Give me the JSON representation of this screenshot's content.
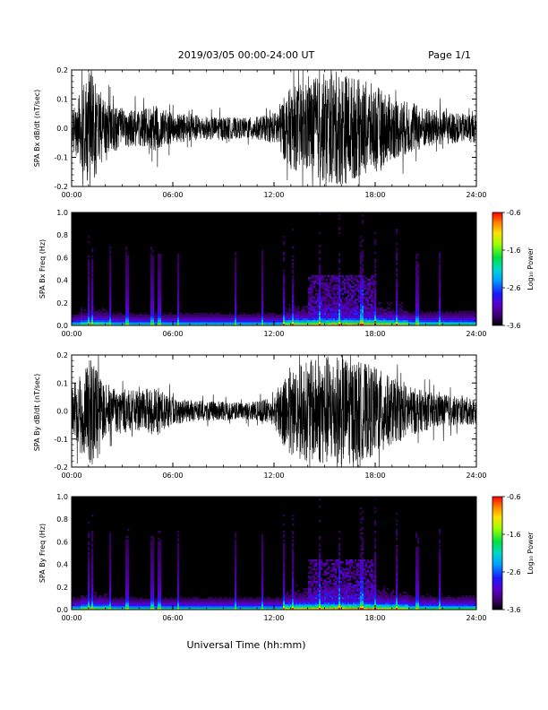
{
  "header": {
    "title": "2019/03/05  00:00-24:00 UT",
    "page": "Page 1/1"
  },
  "footer": {
    "xlabel": "Universal Time (hh:mm)"
  },
  "chart_data": [
    {
      "type": "line",
      "ylabel": "SPA Bx dB/dt (nT/sec)",
      "xlim": [
        0,
        24
      ],
      "ylim": [
        -0.2,
        0.2
      ],
      "x_ticks": [
        "00:00",
        "06:00",
        "12:00",
        "18:00",
        "24:00"
      ],
      "y_ticks": [
        "-0.2",
        "-0.1",
        "0.0",
        "0.1",
        "0.2"
      ],
      "envelope_hours": [
        0,
        0.5,
        1,
        1.5,
        2,
        3,
        4,
        5,
        6,
        7,
        8,
        9,
        10,
        11,
        12,
        12.5,
        13,
        14,
        15,
        16,
        17,
        18,
        19,
        20,
        21,
        22,
        23,
        24
      ],
      "envelope_amplitude": [
        0.07,
        0.12,
        0.2,
        0.16,
        0.09,
        0.07,
        0.06,
        0.08,
        0.05,
        0.05,
        0.04,
        0.04,
        0.035,
        0.04,
        0.05,
        0.1,
        0.14,
        0.16,
        0.19,
        0.2,
        0.17,
        0.15,
        0.11,
        0.09,
        0.07,
        0.06,
        0.05,
        0.05
      ]
    },
    {
      "type": "heatmap",
      "ylabel": "SPA Bx Freq (Hz)",
      "xlim": [
        0,
        24
      ],
      "ylim": [
        0,
        1.0
      ],
      "x_ticks": [
        "00:00",
        "06:00",
        "12:00",
        "18:00",
        "24:00"
      ],
      "y_ticks": [
        "0.0",
        "0.2",
        "0.4",
        "0.6",
        "0.8",
        "1.0"
      ],
      "colorbar": {
        "label": "Log₁₀ Power",
        "range": [
          -3.6,
          -0.6
        ],
        "ticks": [
          "-0.6",
          "-1.6",
          "-2.6",
          "-3.6"
        ]
      }
    },
    {
      "type": "line",
      "ylabel": "SPA By dB/dt (nT/sec)",
      "xlim": [
        0,
        24
      ],
      "ylim": [
        -0.2,
        0.2
      ],
      "x_ticks": [
        "00:00",
        "06:00",
        "12:00",
        "18:00",
        "24:00"
      ],
      "y_ticks": [
        "-0.2",
        "-0.1",
        "0.0",
        "0.1",
        "0.2"
      ],
      "envelope_hours": [
        0,
        0.5,
        1,
        1.5,
        2,
        3,
        4,
        5,
        6,
        7,
        8,
        9,
        10,
        11,
        12,
        12.5,
        13,
        14,
        15,
        16,
        17,
        18,
        19,
        20,
        21,
        22,
        23,
        24
      ],
      "envelope_amplitude": [
        0.08,
        0.14,
        0.2,
        0.18,
        0.1,
        0.08,
        0.07,
        0.09,
        0.05,
        0.04,
        0.035,
        0.035,
        0.03,
        0.035,
        0.05,
        0.12,
        0.16,
        0.18,
        0.2,
        0.2,
        0.18,
        0.16,
        0.12,
        0.09,
        0.07,
        0.06,
        0.05,
        0.05
      ]
    },
    {
      "type": "heatmap",
      "ylabel": "SPA By Freq (Hz)",
      "xlim": [
        0,
        24
      ],
      "ylim": [
        0,
        1.0
      ],
      "x_ticks": [
        "00:00",
        "06:00",
        "12:00",
        "18:00",
        "24:00"
      ],
      "y_ticks": [
        "0.0",
        "0.2",
        "0.4",
        "0.6",
        "0.8",
        "1.0"
      ],
      "colorbar": {
        "label": "Log₁₀ Power",
        "range": [
          -3.6,
          -0.6
        ],
        "ticks": [
          "-0.6",
          "-1.6",
          "-2.6",
          "-3.6"
        ]
      }
    }
  ]
}
